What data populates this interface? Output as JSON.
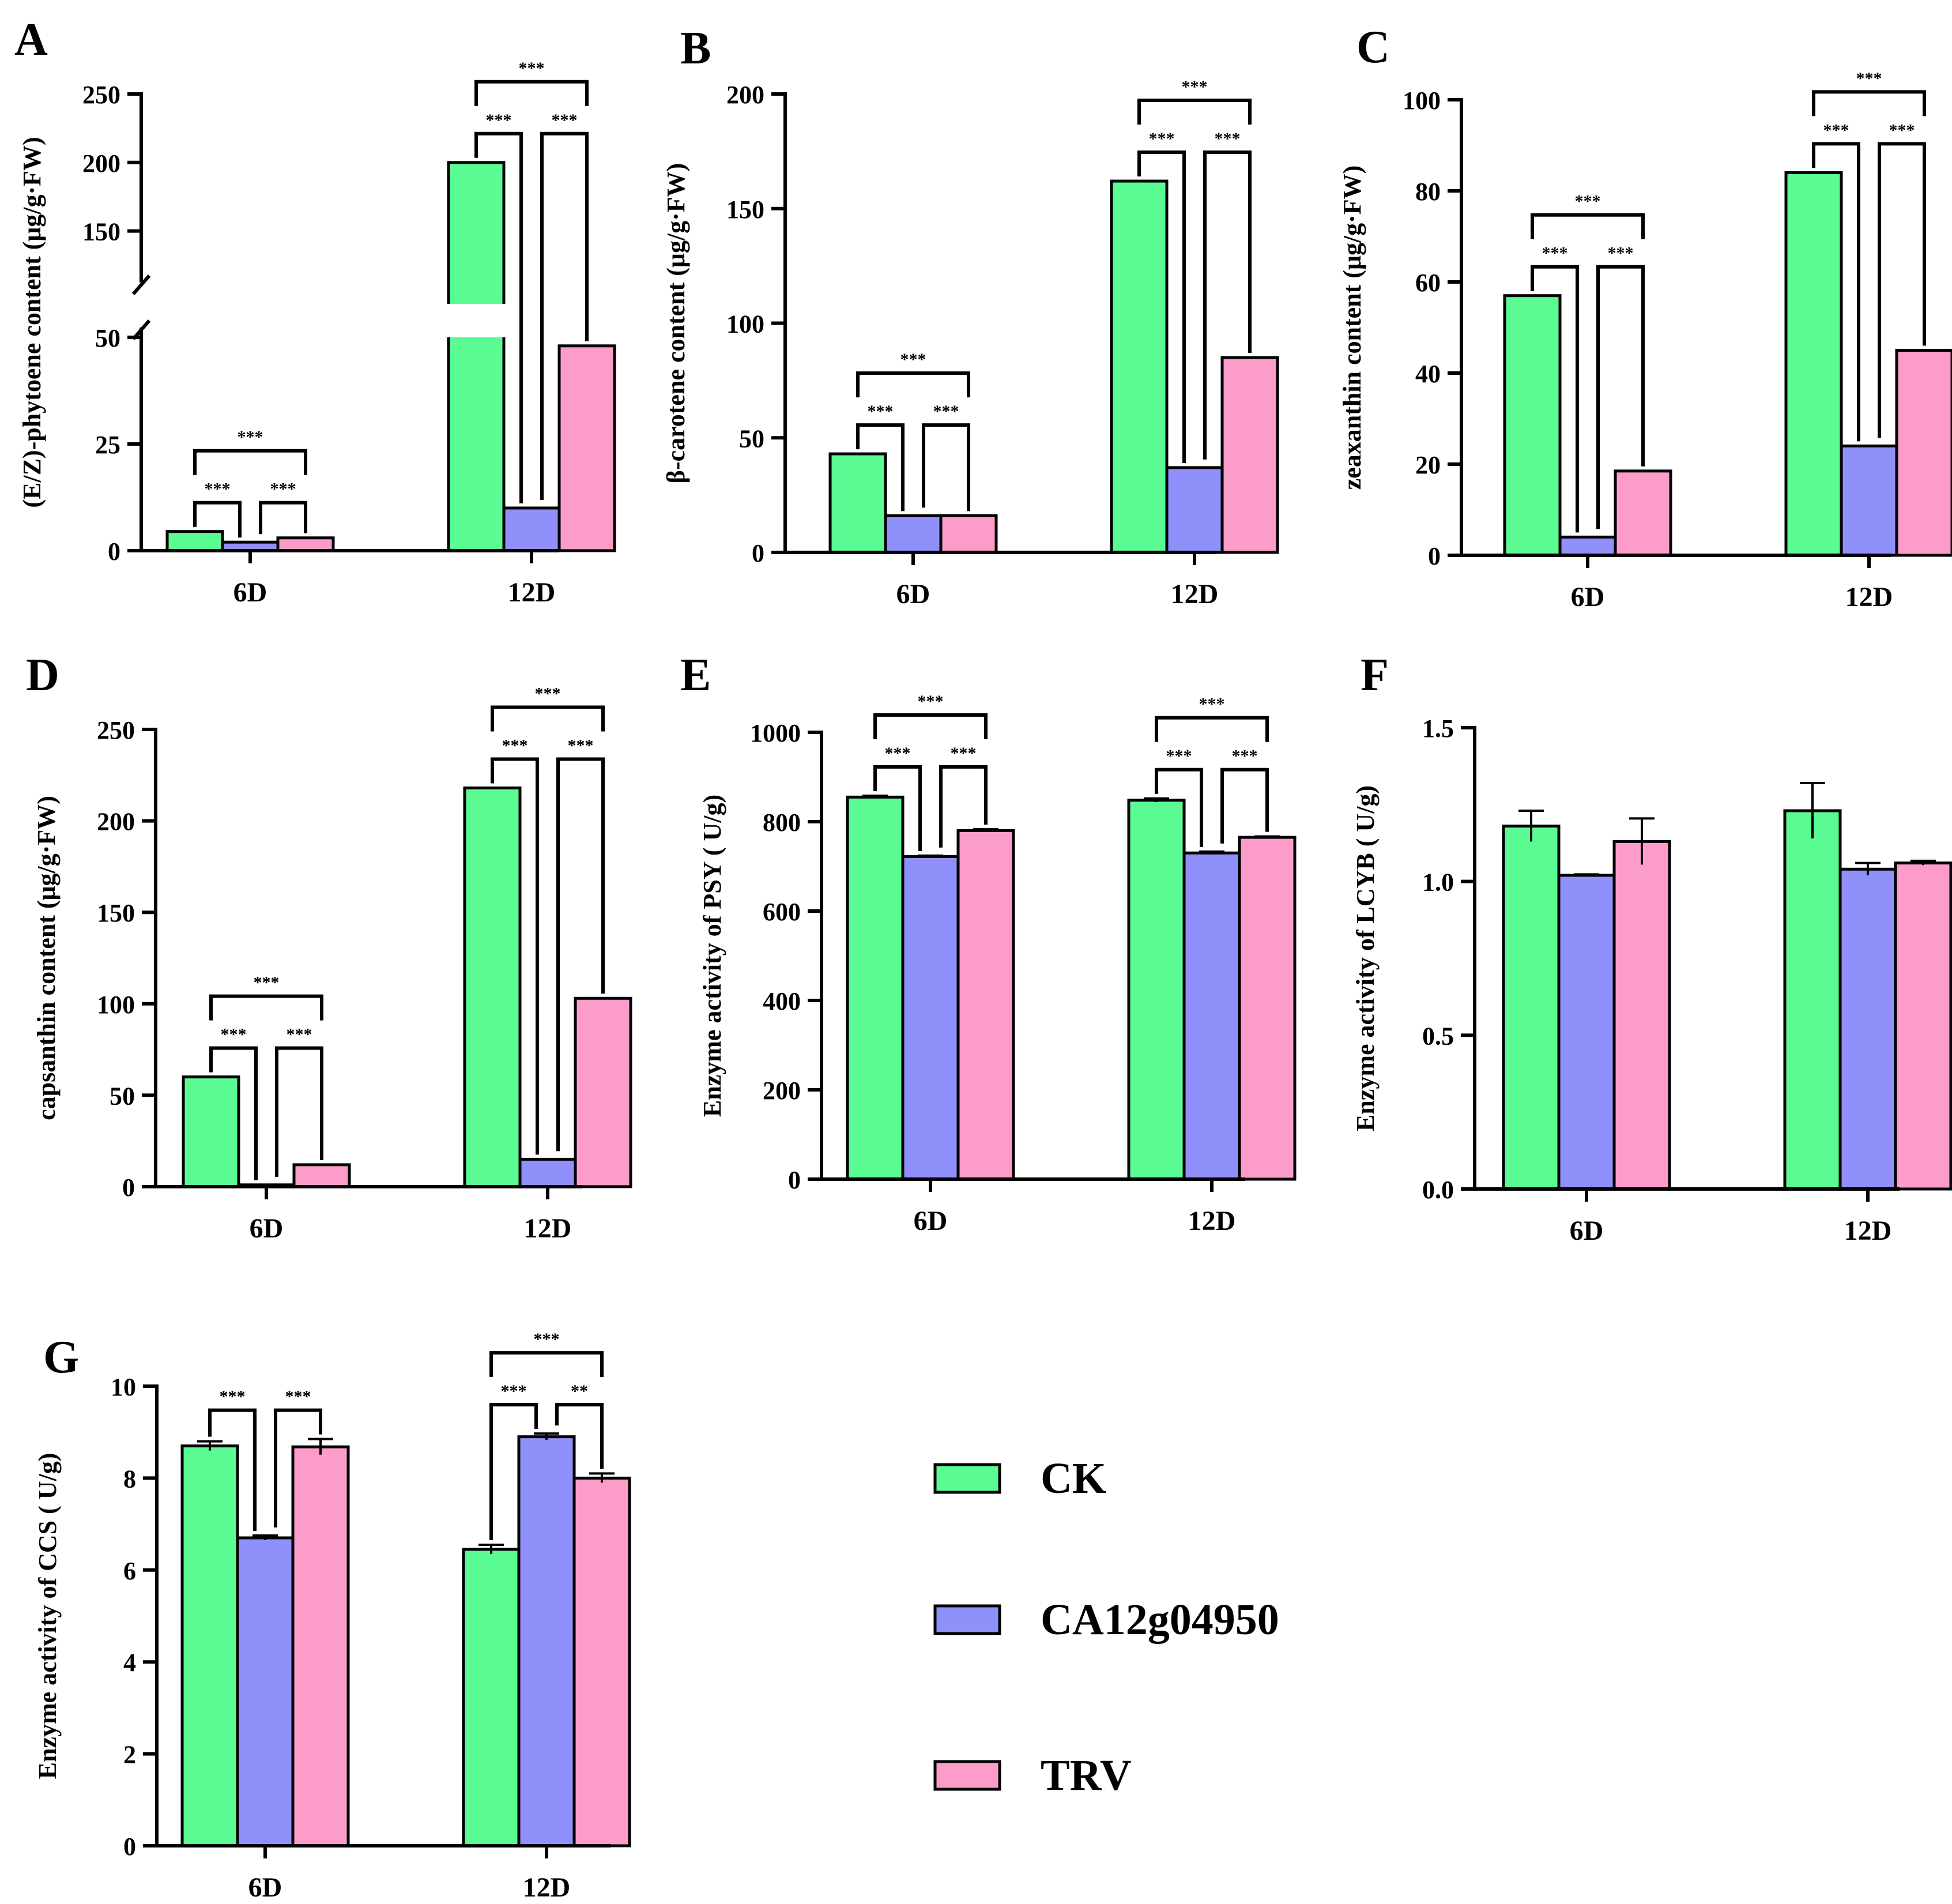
{
  "colors": {
    "CK": "#5BFB94",
    "CA12g04950": "#9090FB",
    "TRV": "#FC9CCB",
    "axis": "#000000"
  },
  "legend": {
    "items": [
      "CK",
      "CA12g04950",
      "TRV"
    ]
  },
  "chart_data": [
    {
      "panel": "A",
      "type": "bar",
      "ylabel": "(E/Z)-phytoene content (μg/g·FW)",
      "categories": [
        "6D",
        "12D"
      ],
      "series": [
        {
          "name": "CK",
          "values": [
            4.5,
            200
          ]
        },
        {
          "name": "CA12g04950",
          "values": [
            2,
            10
          ]
        },
        {
          "name": "TRV",
          "values": [
            3,
            48
          ]
        }
      ],
      "axis_break": {
        "low_range": [
          0,
          50
        ],
        "high_range": [
          125,
          250
        ]
      },
      "yticks": [
        0,
        25,
        50,
        150,
        200,
        250
      ],
      "sig": [
        {
          "cat": 0,
          "from": 0,
          "to": 1,
          "label": "***"
        },
        {
          "cat": 0,
          "from": 1,
          "to": 2,
          "label": "***"
        },
        {
          "cat": 0,
          "from": 0,
          "to": 2,
          "label": "***"
        },
        {
          "cat": 1,
          "from": 0,
          "to": 1,
          "label": "***"
        },
        {
          "cat": 1,
          "from": 1,
          "to": 2,
          "label": "***"
        },
        {
          "cat": 1,
          "from": 0,
          "to": 2,
          "label": "***"
        }
      ]
    },
    {
      "panel": "B",
      "type": "bar",
      "ylabel": "β-carotene content (μg/g·FW)",
      "categories": [
        "6D",
        "12D"
      ],
      "series": [
        {
          "name": "CK",
          "values": [
            43,
            162
          ]
        },
        {
          "name": "CA12g04950",
          "values": [
            16,
            37
          ]
        },
        {
          "name": "TRV",
          "values": [
            16,
            85
          ]
        }
      ],
      "ylim": [
        0,
        200
      ],
      "yticks": [
        0,
        50,
        100,
        150,
        200
      ],
      "sig": [
        {
          "cat": 0,
          "from": 0,
          "to": 1,
          "label": "***"
        },
        {
          "cat": 0,
          "from": 1,
          "to": 2,
          "label": "***"
        },
        {
          "cat": 0,
          "from": 0,
          "to": 2,
          "label": "***"
        },
        {
          "cat": 1,
          "from": 0,
          "to": 1,
          "label": "***"
        },
        {
          "cat": 1,
          "from": 1,
          "to": 2,
          "label": "***"
        },
        {
          "cat": 1,
          "from": 0,
          "to": 2,
          "label": "***"
        }
      ]
    },
    {
      "panel": "C",
      "type": "bar",
      "ylabel": "zeaxanthin content (μg/g·FW)",
      "categories": [
        "6D",
        "12D"
      ],
      "series": [
        {
          "name": "CK",
          "values": [
            57,
            84
          ]
        },
        {
          "name": "CA12g04950",
          "values": [
            4,
            24
          ]
        },
        {
          "name": "TRV",
          "values": [
            18.5,
            45
          ]
        }
      ],
      "ylim": [
        0,
        100
      ],
      "yticks": [
        0,
        20,
        40,
        60,
        80,
        100
      ],
      "sig": [
        {
          "cat": 0,
          "from": 0,
          "to": 1,
          "label": "***"
        },
        {
          "cat": 0,
          "from": 1,
          "to": 2,
          "label": "***"
        },
        {
          "cat": 0,
          "from": 0,
          "to": 2,
          "label": "***"
        },
        {
          "cat": 1,
          "from": 0,
          "to": 1,
          "label": "***"
        },
        {
          "cat": 1,
          "from": 1,
          "to": 2,
          "label": "***"
        },
        {
          "cat": 1,
          "from": 0,
          "to": 2,
          "label": "***"
        }
      ]
    },
    {
      "panel": "D",
      "type": "bar",
      "ylabel": "capsanthin content (μg/g·FW)",
      "categories": [
        "6D",
        "12D"
      ],
      "series": [
        {
          "name": "CK",
          "values": [
            60,
            218
          ]
        },
        {
          "name": "CA12g04950",
          "values": [
            1,
            15
          ]
        },
        {
          "name": "TRV",
          "values": [
            12,
            103
          ]
        }
      ],
      "ylim": [
        0,
        250
      ],
      "yticks": [
        0,
        50,
        100,
        150,
        200,
        250
      ],
      "sig": [
        {
          "cat": 0,
          "from": 0,
          "to": 1,
          "label": "***"
        },
        {
          "cat": 0,
          "from": 1,
          "to": 2,
          "label": "***"
        },
        {
          "cat": 0,
          "from": 0,
          "to": 2,
          "label": "***"
        },
        {
          "cat": 1,
          "from": 0,
          "to": 1,
          "label": "***"
        },
        {
          "cat": 1,
          "from": 1,
          "to": 2,
          "label": "***"
        },
        {
          "cat": 1,
          "from": 0,
          "to": 2,
          "label": "***"
        }
      ]
    },
    {
      "panel": "E",
      "type": "bar",
      "ylabel": "Enzyme activity of PSY ( U/g)",
      "categories": [
        "6D",
        "12D"
      ],
      "series": [
        {
          "name": "CK",
          "values": [
            855,
            848
          ],
          "errors": [
            3,
            4
          ]
        },
        {
          "name": "CA12g04950",
          "values": [
            722,
            730
          ],
          "errors": [
            2,
            3
          ]
        },
        {
          "name": "TRV",
          "values": [
            780,
            765
          ],
          "errors": [
            3,
            2
          ]
        }
      ],
      "ylim": [
        0,
        1000
      ],
      "yticks": [
        0,
        200,
        400,
        600,
        800,
        1000
      ],
      "sig": [
        {
          "cat": 0,
          "from": 0,
          "to": 1,
          "label": "***"
        },
        {
          "cat": 0,
          "from": 1,
          "to": 2,
          "label": "***"
        },
        {
          "cat": 0,
          "from": 0,
          "to": 2,
          "label": "***"
        },
        {
          "cat": 1,
          "from": 0,
          "to": 1,
          "label": "***"
        },
        {
          "cat": 1,
          "from": 1,
          "to": 2,
          "label": "***"
        },
        {
          "cat": 1,
          "from": 0,
          "to": 2,
          "label": "***"
        }
      ]
    },
    {
      "panel": "F",
      "type": "bar",
      "ylabel": "Enzyme activity of LCYB ( U/g)",
      "categories": [
        "6D",
        "12D"
      ],
      "series": [
        {
          "name": "CK",
          "values": [
            1.18,
            1.23
          ],
          "errors": [
            0.05,
            0.09
          ]
        },
        {
          "name": "CA12g04950",
          "values": [
            1.02,
            1.04
          ],
          "errors": [
            0.003,
            0.02
          ]
        },
        {
          "name": "TRV",
          "values": [
            1.13,
            1.06
          ],
          "errors": [
            0.075,
            0.007
          ]
        }
      ],
      "ylim": [
        0,
        1.5
      ],
      "yticks": [
        0.0,
        0.5,
        1.0,
        1.5
      ],
      "ytick_labels": [
        "0.0",
        "0.5",
        "1.0",
        "1.5"
      ],
      "sig": []
    },
    {
      "panel": "G",
      "type": "bar",
      "ylabel": "Enzyme activity of CCS ( U/g)",
      "categories": [
        "6D",
        "12D"
      ],
      "series": [
        {
          "name": "CK",
          "values": [
            8.7,
            6.45
          ],
          "errors": [
            0.1,
            0.1
          ]
        },
        {
          "name": "CA12g04950",
          "values": [
            6.7,
            8.9
          ],
          "errors": [
            0.05,
            0.07
          ]
        },
        {
          "name": "TRV",
          "values": [
            8.68,
            8.0
          ],
          "errors": [
            0.17,
            0.1
          ]
        }
      ],
      "ylim": [
        0,
        10
      ],
      "yticks": [
        0,
        2,
        4,
        6,
        8,
        10
      ],
      "sig": [
        {
          "cat": 0,
          "from": 0,
          "to": 1,
          "label": "***"
        },
        {
          "cat": 0,
          "from": 1,
          "to": 2,
          "label": "***"
        },
        {
          "cat": 1,
          "from": 0,
          "to": 1,
          "label": "***"
        },
        {
          "cat": 1,
          "from": 1,
          "to": 2,
          "label": "**"
        },
        {
          "cat": 1,
          "from": 0,
          "to": 2,
          "label": "***"
        }
      ]
    }
  ]
}
